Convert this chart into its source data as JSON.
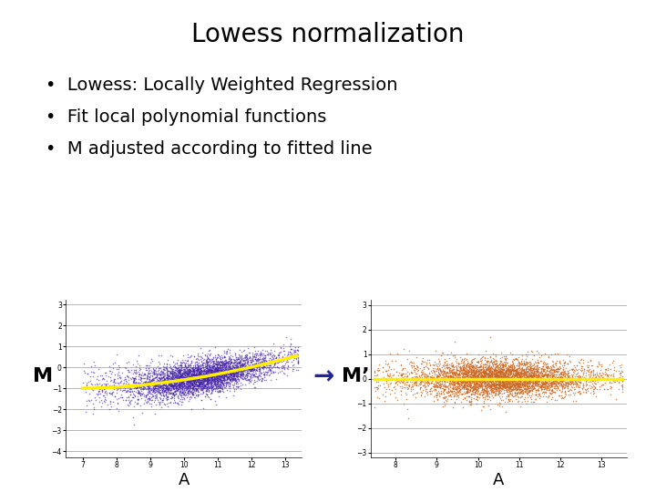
{
  "title": "Lowess normalization",
  "bullets": [
    "Lowess: Locally Weighted Regression",
    "Fit local polynomial functions",
    "M adjusted according to fitted line"
  ],
  "left_xlabel": "A",
  "left_ylabel": "M",
  "right_xlabel": "A",
  "right_ylabel": "M’",
  "left_scatter_color": "#4422aa",
  "right_scatter_color": "#cc6620",
  "lowess_color": "#ffee00",
  "background_color": "#ffffff",
  "arrow_color": "#222299",
  "left_xlim": [
    6.5,
    13.5
  ],
  "left_ylim": [
    -4.3,
    3.2
  ],
  "right_xlim": [
    7.4,
    13.6
  ],
  "right_ylim": [
    -3.2,
    3.2
  ],
  "left_yticks": [
    -4,
    -3,
    -2,
    -1,
    0,
    1,
    2,
    3
  ],
  "right_yticks": [
    -3,
    -2,
    -1,
    0,
    1,
    2,
    3
  ],
  "seed": 42,
  "n_points": 5000,
  "title_fontsize": 20,
  "bullet_fontsize": 14,
  "axis_label_fontsize": 13,
  "ylabel_fontsize": 16
}
